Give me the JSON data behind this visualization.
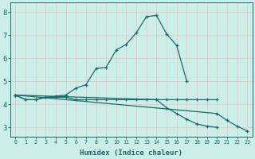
{
  "xlabel": "Humidex (Indice chaleur)",
  "background_color": "#cceee8",
  "line_color": "#1a6b6b",
  "grid_color": "#e8c8c8",
  "xlim": [
    -0.5,
    23.5
  ],
  "ylim": [
    2.6,
    8.4
  ],
  "yticks": [
    3,
    4,
    5,
    6,
    7,
    8
  ],
  "xticks": [
    0,
    1,
    2,
    3,
    4,
    5,
    6,
    7,
    8,
    9,
    10,
    11,
    12,
    13,
    14,
    15,
    16,
    17,
    18,
    19,
    20,
    21,
    22,
    23
  ],
  "line1_x": [
    0,
    1,
    2,
    3,
    4,
    5,
    6,
    7,
    8,
    9,
    10,
    11,
    12,
    13,
    14,
    15,
    16,
    17
  ],
  "line1_y": [
    4.4,
    4.2,
    4.2,
    4.3,
    4.35,
    4.4,
    4.7,
    4.85,
    5.55,
    5.6,
    6.35,
    6.6,
    7.1,
    7.8,
    7.85,
    7.05,
    6.55,
    5.0
  ],
  "line2_x": [
    0,
    1,
    2,
    3,
    4,
    5,
    6,
    7,
    8,
    9,
    10,
    11,
    12,
    13,
    14,
    15,
    16,
    17,
    18,
    19,
    20
  ],
  "line2_y": [
    4.4,
    4.2,
    4.2,
    4.3,
    4.3,
    4.3,
    4.2,
    4.2,
    4.2,
    4.2,
    4.2,
    4.2,
    4.2,
    4.2,
    4.2,
    4.2,
    4.2,
    4.2,
    4.2,
    4.2,
    4.2
  ],
  "line3_x": [
    0,
    14,
    15,
    16,
    17,
    18,
    19,
    20
  ],
  "line3_y": [
    4.4,
    4.2,
    3.85,
    3.6,
    3.35,
    3.15,
    3.05,
    3.0
  ],
  "line4_x": [
    0,
    20,
    21,
    22,
    23
  ],
  "line4_y": [
    4.4,
    3.6,
    3.3,
    3.05,
    2.85
  ]
}
